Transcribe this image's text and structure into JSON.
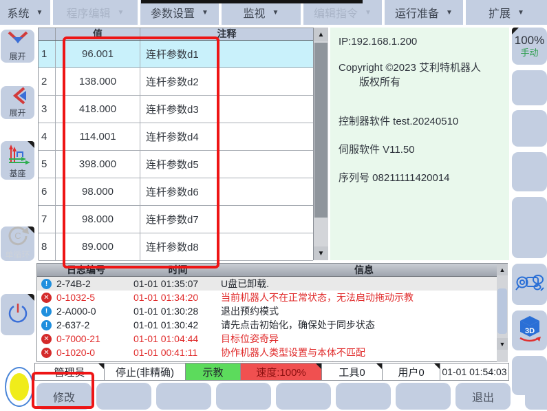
{
  "menu": {
    "items": [
      {
        "label": "系统",
        "enabled": true
      },
      {
        "label": "程序编辑",
        "enabled": false
      },
      {
        "label": "参数设置",
        "enabled": true
      },
      {
        "label": "监视",
        "enabled": true
      },
      {
        "label": "编辑指令",
        "enabled": false
      },
      {
        "label": "运行准备",
        "enabled": true
      },
      {
        "label": "扩展",
        "enabled": true
      }
    ]
  },
  "sidebar": {
    "expand_down_label": "展开",
    "expand_left_label": "展开",
    "base_label": "基座",
    "single_cycle_label": "单循环"
  },
  "param_table": {
    "value_header": "值",
    "comment_header": "注释",
    "rows": [
      {
        "index": "1",
        "value": "96.001",
        "comment": "连杆参数d1",
        "selected": true
      },
      {
        "index": "2",
        "value": "138.000",
        "comment": "连杆参数d2",
        "selected": false
      },
      {
        "index": "3",
        "value": "418.000",
        "comment": "连杆参数d3",
        "selected": false
      },
      {
        "index": "4",
        "value": "114.001",
        "comment": "连杆参数d4",
        "selected": false
      },
      {
        "index": "5",
        "value": "398.000",
        "comment": "连杆参数d5",
        "selected": false
      },
      {
        "index": "6",
        "value": "98.000",
        "comment": "连杆参数d6",
        "selected": false
      },
      {
        "index": "7",
        "value": "98.000",
        "comment": "连杆参数d7",
        "selected": false
      },
      {
        "index": "8",
        "value": "89.000",
        "comment": "连杆参数d8",
        "selected": false
      }
    ]
  },
  "info_panel": {
    "ip": "IP:192.168.1.200",
    "copyright_line1": "Copyright ©2023 艾利特机器人",
    "copyright_line2": "版权所有",
    "controller_sw": "控制器软件 test.20240510",
    "servo_sw": "伺服软件 V11.50",
    "serial": "序列号 08211111420014"
  },
  "mode_button": {
    "percent": "100%",
    "mode": "手动"
  },
  "log_table": {
    "headers": {
      "id": "日志编号",
      "time": "时间",
      "message": "信息"
    },
    "rows": [
      {
        "level": "info",
        "id": "2-74B-2",
        "time": "01-01 01:35:07",
        "message": "U盘已卸载.",
        "highlight": true
      },
      {
        "level": "error",
        "id": "0-1032-5",
        "time": "01-01 01:34:20",
        "message": "当前机器人不在正常状态，无法启动拖动示教",
        "highlight": false
      },
      {
        "level": "info",
        "id": "2-A000-0",
        "time": "01-01 01:30:28",
        "message": "退出预约模式",
        "highlight": false
      },
      {
        "level": "info",
        "id": "2-637-2",
        "time": "01-01 01:30:42",
        "message": "请先点击初始化，确保处于同步状态",
        "highlight": false
      },
      {
        "level": "error",
        "id": "0-7000-21",
        "time": "01-01 01:04:44",
        "message": "目标位姿奇异",
        "highlight": false
      },
      {
        "level": "error",
        "id": "0-1020-0",
        "time": "01-01 00:41:11",
        "message": "协作机器人类型设置与本体不匹配",
        "highlight": false
      },
      {
        "level": "error",
        "id": "0-1020-0",
        "time": "01-01 00:41:11",
        "message": "协作机器人类型设置与本体不匹配",
        "highlight": false
      }
    ]
  },
  "status_bar": {
    "user": "管理员",
    "motion_state": "停止(非精确)",
    "teach_mode": "示教",
    "speed": "速度:100%",
    "tool": "工具0",
    "user_frame": "用户0",
    "datetime": "01-01 01:54:03"
  },
  "bottom_bar": {
    "buttons": [
      "修改",
      "",
      "",
      "",
      "",
      "",
      "",
      "退出"
    ]
  },
  "colors": {
    "button_blue": "#c3cee1",
    "selected_row": "#c9f1fb",
    "info_panel_green": "#e9f8ec",
    "teach_green": "#5cdb5c",
    "speed_red": "#f05050",
    "error_red": "#e02a2a",
    "annotation_red": "#ee1515"
  }
}
